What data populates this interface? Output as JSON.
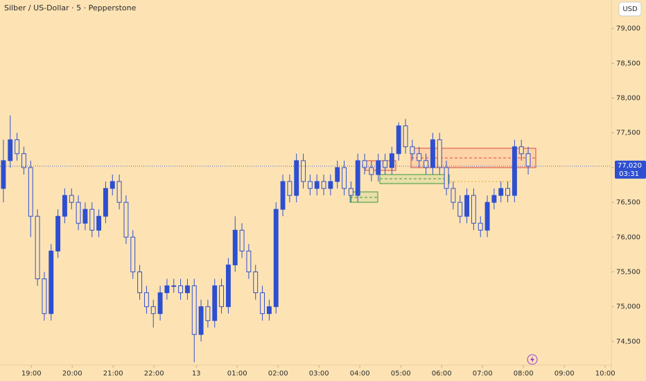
{
  "chart_data": {
    "type": "candlestick",
    "title": "Silber / US-Dollar · 5 · Pepperstone",
    "currency": "USD",
    "color": "#2d4fd0",
    "background": "#fde3b4",
    "open": [
      76.7,
      77.1,
      77.4,
      77.2,
      77.0,
      76.3,
      75.4,
      74.9,
      75.8,
      76.3,
      76.6,
      76.5,
      76.2,
      76.4,
      76.1,
      76.3,
      76.7,
      76.8,
      76.5,
      76.0,
      75.5,
      75.2,
      75.0,
      74.9,
      75.2,
      75.3,
      75.3,
      75.2,
      75.3,
      74.6,
      75.0,
      74.8,
      75.3,
      75.0,
      75.6,
      76.1,
      75.8,
      75.5,
      75.2,
      74.9,
      75.0,
      76.4,
      76.8,
      76.6,
      77.1,
      76.8,
      76.7,
      76.8,
      76.7,
      76.8,
      77.0,
      76.7,
      76.6,
      77.1,
      77.0,
      76.9,
      77.1,
      77.0,
      77.2,
      77.6,
      77.3,
      77.2,
      77.1,
      77.0,
      77.4,
      77.0,
      76.7,
      76.5,
      76.3,
      76.6,
      76.2,
      76.1,
      76.5,
      76.6,
      76.7,
      76.6,
      77.3,
      77.2
    ],
    "high": [
      77.4,
      77.75,
      77.5,
      77.3,
      77.1,
      76.4,
      75.5,
      75.9,
      76.4,
      76.7,
      76.7,
      76.6,
      76.5,
      76.5,
      76.4,
      76.8,
      76.9,
      76.9,
      76.6,
      76.1,
      75.6,
      75.3,
      75.1,
      75.3,
      75.4,
      75.4,
      75.4,
      75.4,
      75.4,
      75.1,
      75.1,
      75.4,
      75.4,
      75.7,
      76.3,
      76.2,
      75.9,
      75.6,
      75.3,
      75.1,
      76.5,
      76.9,
      76.9,
      77.2,
      77.2,
      76.9,
      76.9,
      76.9,
      76.9,
      77.1,
      77.1,
      76.8,
      77.2,
      77.2,
      77.1,
      77.2,
      77.2,
      77.3,
      77.65,
      77.7,
      77.4,
      77.3,
      77.2,
      77.5,
      77.5,
      77.1,
      76.8,
      76.6,
      76.7,
      76.7,
      76.3,
      76.6,
      76.7,
      76.8,
      76.8,
      77.4,
      77.4,
      77.3
    ],
    "low": [
      76.5,
      77.0,
      77.1,
      76.9,
      76.0,
      75.3,
      74.8,
      74.8,
      75.7,
      76.2,
      76.4,
      76.1,
      76.1,
      76.0,
      76.0,
      76.2,
      76.6,
      76.4,
      75.9,
      75.4,
      75.1,
      74.9,
      74.7,
      74.8,
      75.1,
      75.2,
      75.1,
      75.1,
      74.2,
      74.5,
      74.7,
      74.7,
      74.9,
      74.9,
      75.5,
      75.7,
      75.4,
      75.1,
      74.8,
      74.8,
      74.9,
      76.3,
      76.5,
      76.5,
      76.7,
      76.6,
      76.6,
      76.6,
      76.6,
      76.7,
      76.6,
      76.5,
      76.5,
      76.9,
      76.8,
      76.8,
      76.9,
      76.9,
      77.1,
      77.2,
      77.1,
      77.0,
      76.9,
      76.9,
      76.9,
      76.6,
      76.4,
      76.2,
      76.2,
      76.1,
      76.0,
      76.0,
      76.4,
      76.5,
      76.5,
      76.5,
      77.1,
      76.9
    ],
    "close": [
      77.1,
      77.4,
      77.2,
      77.0,
      76.3,
      75.4,
      74.9,
      75.8,
      76.3,
      76.6,
      76.5,
      76.2,
      76.4,
      76.1,
      76.3,
      76.7,
      76.8,
      76.5,
      76.0,
      75.5,
      75.2,
      75.0,
      74.9,
      75.2,
      75.3,
      75.3,
      75.2,
      75.3,
      74.6,
      75.0,
      74.8,
      75.3,
      75.0,
      75.6,
      76.1,
      75.8,
      75.5,
      75.2,
      74.9,
      75.0,
      76.4,
      76.8,
      76.6,
      77.1,
      76.8,
      76.7,
      76.8,
      76.7,
      76.8,
      77.0,
      76.7,
      76.6,
      77.1,
      77.0,
      76.9,
      77.1,
      77.0,
      77.2,
      77.6,
      77.3,
      77.2,
      77.1,
      77.0,
      77.4,
      77.0,
      76.7,
      76.5,
      76.3,
      76.6,
      76.2,
      76.1,
      76.5,
      76.6,
      76.7,
      76.6,
      77.3,
      77.2,
      77.02
    ],
    "last_price": {
      "value": 77.02,
      "label": "77,020"
    },
    "countdown": "03:31",
    "xlim": [
      -0.5,
      89.2
    ],
    "xticks": [
      {
        "value": 4.1,
        "label": "19:00"
      },
      {
        "value": 10.1,
        "label": "20:00"
      },
      {
        "value": 16.1,
        "label": "21:00"
      },
      {
        "value": 22.1,
        "label": "22:00"
      },
      {
        "value": 28.3,
        "label": "13"
      },
      {
        "value": 34.3,
        "label": "01:00"
      },
      {
        "value": 40.3,
        "label": "02:00"
      },
      {
        "value": 46.3,
        "label": "03:00"
      },
      {
        "value": 52.3,
        "label": "04:00"
      },
      {
        "value": 58.3,
        "label": "05:00"
      },
      {
        "value": 64.3,
        "label": "06:00"
      },
      {
        "value": 70.3,
        "label": "07:00"
      },
      {
        "value": 76.3,
        "label": "08:00"
      },
      {
        "value": 82.3,
        "label": "09:00"
      },
      {
        "value": 88.3,
        "label": "10:00"
      }
    ],
    "ylim": [
      74.18,
      79.41
    ],
    "yticks": [
      {
        "value": 74.5,
        "label": "74,500"
      },
      {
        "value": 75,
        "label": "75,000"
      },
      {
        "value": 75.5,
        "label": "75,500"
      },
      {
        "value": 76,
        "label": "76,000"
      },
      {
        "value": 76.5,
        "label": "76,500"
      },
      {
        "value": 77,
        "label": "77,000"
      },
      {
        "value": 77.5,
        "label": "77,500"
      },
      {
        "value": 78,
        "label": "78,000"
      },
      {
        "value": 78.5,
        "label": "78,500"
      },
      {
        "value": 79,
        "label": "79,000"
      }
    ]
  }
}
